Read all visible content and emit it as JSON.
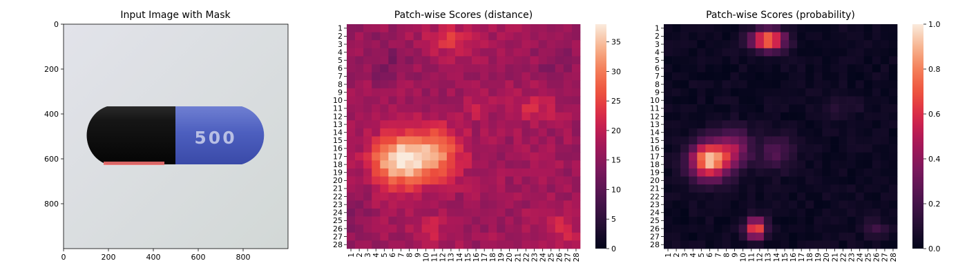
{
  "chart_data": [
    {
      "type": "image",
      "title": "Input Image with Mask",
      "xlim": [
        0,
        1000
      ],
      "ylim": [
        1000,
        0
      ],
      "xticks": [
        0,
        200,
        400,
        600,
        800
      ],
      "yticks": [
        0,
        200,
        400,
        600,
        800
      ],
      "capsule_text": "500",
      "colors": {
        "background": "#d8dcdc",
        "cap_dark": "#111111",
        "body_blue": "#4d5fbf",
        "mask": "#f07070"
      }
    },
    {
      "type": "heatmap",
      "title": "Patch-wise Scores (distance)",
      "rows": [
        "1",
        "2",
        "3",
        "4",
        "5",
        "6",
        "7",
        "8",
        "9",
        "10",
        "11",
        "12",
        "13",
        "14",
        "15",
        "16",
        "17",
        "18",
        "19",
        "20",
        "21",
        "22",
        "23",
        "24",
        "25",
        "26",
        "27",
        "28"
      ],
      "cols": [
        "1",
        "2",
        "3",
        "4",
        "5",
        "6",
        "7",
        "8",
        "9",
        "10",
        "11",
        "12",
        "13",
        "14",
        "15",
        "16",
        "17",
        "18",
        "19",
        "20",
        "21",
        "22",
        "23",
        "24",
        "25",
        "26",
        "27",
        "28"
      ],
      "vmin": 0,
      "vmax": 38,
      "colorbar_ticks": [
        0,
        5,
        10,
        15,
        20,
        25,
        30,
        35
      ],
      "colormap": "rocket",
      "base": 17,
      "blobs": [
        {
          "r": 17.5,
          "c": 7.0,
          "amp": 20.5,
          "sr": 2.2,
          "sc": 2.4
        },
        {
          "r": 16.5,
          "c": 11.5,
          "amp": 12.5,
          "sr": 2.3,
          "sc": 2.0
        },
        {
          "r": 2.5,
          "c": 13.0,
          "amp": 6.5,
          "sr": 1.2,
          "sc": 2.2
        },
        {
          "r": 11.0,
          "c": 23.0,
          "amp": 5.0,
          "sr": 1.2,
          "sc": 1.8
        },
        {
          "r": 26.0,
          "c": 10.5,
          "amp": 5.5,
          "sr": 1.1,
          "sc": 1.1
        },
        {
          "r": 26.0,
          "c": 26.5,
          "amp": 6.0,
          "sr": 1.2,
          "sc": 1.1
        },
        {
          "r": 11.0,
          "c": 16.5,
          "amp": 3.5,
          "sr": 1.0,
          "sc": 1.0
        }
      ],
      "dips": [
        {
          "r": 5.0,
          "c": 5.0,
          "amp": -3.0,
          "sr": 2.0,
          "sc": 2.0
        },
        {
          "r": 23.5,
          "c": 1.5,
          "amp": -3.0,
          "sr": 2.0,
          "sc": 1.0
        },
        {
          "r": 5.0,
          "c": 26.0,
          "amp": -2.5,
          "sr": 2.0,
          "sc": 2.0
        }
      ],
      "noise": 2.2
    },
    {
      "type": "heatmap",
      "title": "Patch-wise Scores (probability)",
      "rows": [
        "1",
        "2",
        "3",
        "4",
        "5",
        "6",
        "7",
        "8",
        "9",
        "10",
        "11",
        "12",
        "13",
        "14",
        "15",
        "16",
        "17",
        "18",
        "19",
        "20",
        "21",
        "22",
        "23",
        "24",
        "25",
        "26",
        "27",
        "28"
      ],
      "cols": [
        "1",
        "2",
        "3",
        "4",
        "5",
        "6",
        "7",
        "8",
        "9",
        "10",
        "11",
        "12",
        "13",
        "14",
        "15",
        "16",
        "17",
        "18",
        "19",
        "20",
        "21",
        "22",
        "23",
        "24",
        "25",
        "26",
        "27",
        "28"
      ],
      "vmin": 0,
      "vmax": 1.0,
      "colorbar_ticks": [
        0.0,
        0.2,
        0.4,
        0.6,
        0.8,
        1.0
      ],
      "colorbar_tick_labels": [
        "0.0",
        "0.2",
        "0.4",
        "0.6",
        "0.8",
        "1.0"
      ],
      "colormap": "rocket",
      "base": 0.03,
      "blobs": [
        {
          "r": 17.5,
          "c": 6.0,
          "amp": 0.88,
          "sr": 1.6,
          "sc": 1.6
        },
        {
          "r": 16.0,
          "c": 9.0,
          "amp": 0.35,
          "sr": 1.6,
          "sc": 1.4
        },
        {
          "r": 2.5,
          "c": 13.0,
          "amp": 0.78,
          "sr": 0.9,
          "sc": 1.4
        },
        {
          "r": 26.0,
          "c": 11.5,
          "amp": 0.72,
          "sr": 0.9,
          "sc": 0.8
        },
        {
          "r": 16.5,
          "c": 14.0,
          "amp": 0.2,
          "sr": 1.5,
          "sc": 1.5
        },
        {
          "r": 26.0,
          "c": 26.0,
          "amp": 0.14,
          "sr": 0.8,
          "sc": 1.0
        },
        {
          "r": 11.0,
          "c": 22.0,
          "amp": 0.07,
          "sr": 1.0,
          "sc": 1.5
        }
      ],
      "dips": [],
      "noise": 0.03
    }
  ]
}
